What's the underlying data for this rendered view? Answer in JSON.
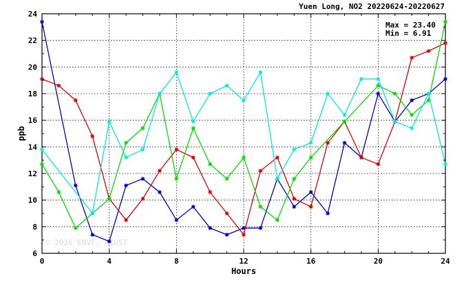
{
  "chart_data": {
    "type": "line",
    "title": "Yuen Long, NO2 20220624-20220627",
    "xlabel": "Hours",
    "ylabel": "ppb",
    "xlim": [
      0,
      24
    ],
    "ylim": [
      6,
      24
    ],
    "xticks": [
      0,
      4,
      8,
      12,
      16,
      20,
      24
    ],
    "yticks": [
      6,
      8,
      10,
      12,
      14,
      16,
      18,
      20,
      22,
      24
    ],
    "grid": true,
    "stats": {
      "max_label": "Max = 23.40",
      "min_label": "Min =  6.91"
    },
    "watermark": "© 2026  ENVF, HKUST",
    "x": [
      0,
      1,
      2,
      3,
      4,
      5,
      6,
      7,
      8,
      9,
      10,
      11,
      12,
      13,
      14,
      15,
      16,
      17,
      18,
      19,
      20,
      21,
      22,
      23,
      24
    ],
    "series": [
      {
        "color": "#0000cc",
        "values": [
          23.4,
          null,
          11.1,
          7.4,
          6.9,
          11.1,
          11.6,
          10.6,
          8.5,
          9.5,
          7.9,
          7.4,
          7.9,
          7.9,
          11.6,
          9.5,
          10.6,
          9.0,
          14.3,
          13.2,
          18.0,
          15.9,
          17.5,
          18.0,
          19.1
        ]
      },
      {
        "color": "#dd0000",
        "values": [
          19.1,
          18.6,
          17.5,
          14.8,
          10.1,
          8.5,
          10.1,
          12.2,
          13.8,
          13.2,
          10.6,
          9.0,
          7.4,
          12.2,
          13.2,
          10.1,
          9.5,
          14.3,
          15.9,
          13.2,
          12.7,
          15.9,
          20.7,
          21.2,
          21.8
        ]
      },
      {
        "color": "#00dd00",
        "values": [
          12.7,
          10.6,
          7.9,
          9.0,
          10.1,
          14.3,
          15.4,
          18.0,
          11.6,
          15.4,
          12.7,
          11.6,
          13.2,
          9.5,
          8.5,
          11.6,
          13.2,
          null,
          15.9,
          null,
          18.6,
          18.0,
          16.4,
          17.5,
          23.4
        ]
      },
      {
        "color": "#00e8e8",
        "values": [
          13.8,
          null,
          null,
          9.0,
          15.9,
          13.2,
          13.8,
          18.0,
          19.6,
          15.9,
          18.0,
          18.6,
          17.5,
          19.6,
          11.6,
          13.8,
          14.3,
          18.0,
          16.4,
          19.1,
          19.1,
          15.9,
          15.4,
          18.0,
          12.7
        ]
      }
    ]
  }
}
